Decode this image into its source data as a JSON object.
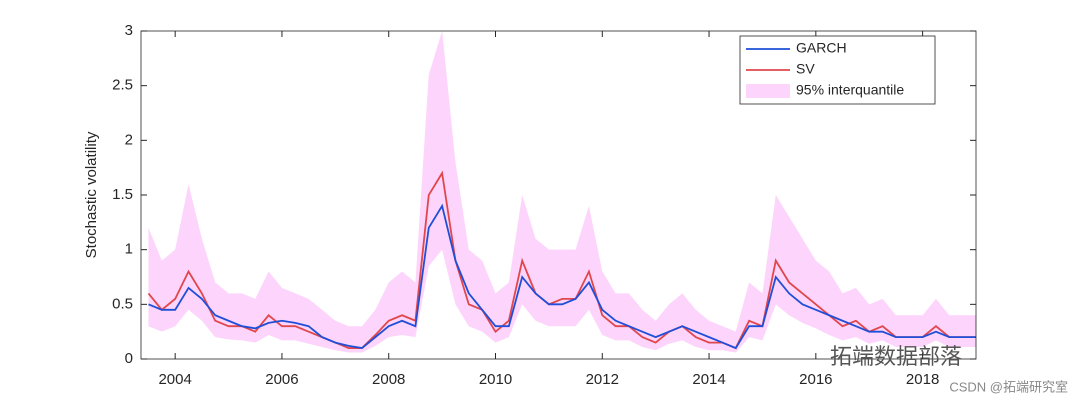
{
  "chart_data": {
    "type": "line",
    "ylabel": "Stochastic volatility",
    "x": [
      2003.5,
      2003.75,
      2004,
      2004.25,
      2004.5,
      2004.75,
      2005,
      2005.25,
      2005.5,
      2005.75,
      2006,
      2006.25,
      2006.5,
      2006.75,
      2007,
      2007.25,
      2007.5,
      2007.75,
      2008,
      2008.25,
      2008.5,
      2008.75,
      2009,
      2009.25,
      2009.5,
      2009.75,
      2010,
      2010.25,
      2010.5,
      2010.75,
      2011,
      2011.25,
      2011.5,
      2011.75,
      2012,
      2012.25,
      2012.5,
      2012.75,
      2013,
      2013.25,
      2013.5,
      2013.75,
      2014,
      2014.25,
      2014.5,
      2014.75,
      2015,
      2015.25,
      2015.5,
      2015.75,
      2016,
      2016.25,
      2016.5,
      2016.75,
      2017,
      2017.25,
      2017.5,
      2017.75,
      2018,
      2018.25,
      2018.5,
      2018.75,
      2019
    ],
    "series": [
      {
        "name": "GARCH",
        "color": "#1f4fd8",
        "values": [
          0.5,
          0.45,
          0.45,
          0.65,
          0.55,
          0.4,
          0.35,
          0.3,
          0.28,
          0.33,
          0.35,
          0.33,
          0.3,
          0.2,
          0.15,
          0.12,
          0.1,
          0.2,
          0.3,
          0.35,
          0.3,
          1.2,
          1.4,
          0.9,
          0.6,
          0.45,
          0.3,
          0.3,
          0.75,
          0.6,
          0.5,
          0.5,
          0.55,
          0.7,
          0.45,
          0.35,
          0.3,
          0.25,
          0.2,
          0.25,
          0.3,
          0.25,
          0.2,
          0.15,
          0.1,
          0.3,
          0.3,
          0.75,
          0.6,
          0.5,
          0.45,
          0.4,
          0.35,
          0.3,
          0.25,
          0.25,
          0.2,
          0.2,
          0.2,
          0.25,
          0.2,
          0.2,
          0.2
        ]
      },
      {
        "name": "SV",
        "color": "#e0474c",
        "values": [
          0.6,
          0.45,
          0.55,
          0.8,
          0.6,
          0.35,
          0.3,
          0.3,
          0.25,
          0.4,
          0.3,
          0.3,
          0.25,
          0.2,
          0.15,
          0.1,
          0.1,
          0.22,
          0.35,
          0.4,
          0.35,
          1.5,
          1.7,
          0.9,
          0.5,
          0.45,
          0.25,
          0.35,
          0.9,
          0.6,
          0.5,
          0.55,
          0.55,
          0.8,
          0.4,
          0.3,
          0.3,
          0.2,
          0.15,
          0.25,
          0.3,
          0.2,
          0.15,
          0.15,
          0.1,
          0.35,
          0.3,
          0.9,
          0.7,
          0.6,
          0.5,
          0.4,
          0.3,
          0.35,
          0.25,
          0.3,
          0.2,
          0.2,
          0.2,
          0.3,
          0.2,
          0.2,
          0.2
        ]
      }
    ],
    "band": {
      "name": "95% interquantile",
      "color": "#fdd4fb",
      "upper": [
        1.2,
        0.9,
        1.0,
        1.6,
        1.1,
        0.7,
        0.6,
        0.6,
        0.55,
        0.8,
        0.65,
        0.6,
        0.55,
        0.45,
        0.35,
        0.3,
        0.3,
        0.45,
        0.7,
        0.8,
        0.7,
        2.6,
        3.0,
        1.8,
        1.0,
        0.9,
        0.6,
        0.7,
        1.5,
        1.1,
        1.0,
        1.0,
        1.0,
        1.4,
        0.8,
        0.6,
        0.6,
        0.45,
        0.35,
        0.5,
        0.6,
        0.45,
        0.35,
        0.3,
        0.25,
        0.7,
        0.6,
        1.5,
        1.3,
        1.1,
        0.9,
        0.8,
        0.6,
        0.65,
        0.5,
        0.55,
        0.4,
        0.4,
        0.4,
        0.55,
        0.4,
        0.4,
        0.4
      ],
      "lower": [
        0.3,
        0.25,
        0.3,
        0.45,
        0.35,
        0.2,
        0.18,
        0.17,
        0.15,
        0.22,
        0.17,
        0.17,
        0.14,
        0.11,
        0.08,
        0.06,
        0.06,
        0.12,
        0.2,
        0.22,
        0.2,
        0.85,
        1.0,
        0.5,
        0.3,
        0.25,
        0.15,
        0.2,
        0.5,
        0.35,
        0.3,
        0.3,
        0.3,
        0.45,
        0.22,
        0.17,
        0.17,
        0.11,
        0.08,
        0.14,
        0.17,
        0.11,
        0.08,
        0.08,
        0.06,
        0.2,
        0.17,
        0.5,
        0.4,
        0.33,
        0.28,
        0.22,
        0.17,
        0.2,
        0.14,
        0.17,
        0.11,
        0.11,
        0.11,
        0.17,
        0.11,
        0.11,
        0.11
      ]
    },
    "xlim": [
      2003.36,
      2019.0
    ],
    "xticks": [
      2004,
      2006,
      2008,
      2010,
      2012,
      2014,
      2016,
      2018
    ],
    "ylim": [
      0,
      3
    ],
    "yticks": [
      0,
      0.5,
      1,
      1.5,
      2,
      2.5,
      3
    ],
    "legend": "top-right",
    "watermark": [
      "拓端数据部落",
      "CSDN @拓端研究室"
    ]
  }
}
